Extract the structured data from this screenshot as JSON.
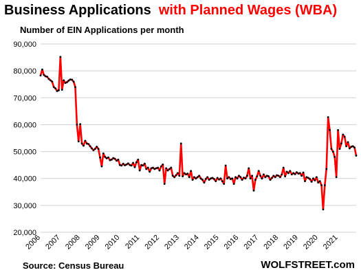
{
  "title": {
    "part1": "Business Applications",
    "part2": "with Planned Wages (WBA)"
  },
  "subtitle": "Number of EIN Applications per month",
  "source": "Source: Census Bureau",
  "brand": "WOLFSTREET.com",
  "colors": {
    "line": "#ff0000",
    "marker": "#000000",
    "grid": "#d0d0d0",
    "title_accent": "#ff0000"
  },
  "chart_data": {
    "type": "line",
    "title": "Business Applications with Planned Wages (WBA)",
    "ylabel": "Number of EIN Applications per month",
    "xlabel": "",
    "ylim": [
      20000,
      90000
    ],
    "yticks": [
      20000,
      30000,
      40000,
      50000,
      60000,
      70000,
      80000,
      90000
    ],
    "ytick_labels": [
      "20,000",
      "30,000",
      "40,000",
      "50,000",
      "60,000",
      "70,000",
      "80,000",
      "90,000"
    ],
    "xlim": [
      "2006-01",
      "2021-12"
    ],
    "xticks": [
      "2006",
      "2007",
      "2008",
      "2009",
      "2010",
      "2011",
      "2012",
      "2013",
      "2014",
      "2015",
      "2016",
      "2017",
      "2018",
      "2019",
      "2020",
      "2021"
    ],
    "grid": true,
    "legend": "none",
    "series": [
      {
        "marker": "dot",
        "points": [
          [
            "2006-01",
            78300
          ],
          [
            "2006-02",
            80500
          ],
          [
            "2006-03",
            78500
          ],
          [
            "2006-04",
            78000
          ],
          [
            "2006-05",
            77800
          ],
          [
            "2006-06",
            77000
          ],
          [
            "2006-07",
            76500
          ],
          [
            "2006-08",
            76000
          ],
          [
            "2006-09",
            74000
          ],
          [
            "2006-10",
            73500
          ],
          [
            "2006-11",
            72500
          ],
          [
            "2006-12",
            72800
          ],
          [
            "2007-01",
            85200
          ],
          [
            "2007-02",
            73000
          ],
          [
            "2007-03",
            76500
          ],
          [
            "2007-04",
            75500
          ],
          [
            "2007-05",
            75800
          ],
          [
            "2007-06",
            76400
          ],
          [
            "2007-07",
            76800
          ],
          [
            "2007-08",
            76700
          ],
          [
            "2007-09",
            76000
          ],
          [
            "2007-10",
            74000
          ],
          [
            "2007-11",
            60000
          ],
          [
            "2007-12",
            53800
          ],
          [
            "2008-01",
            60200
          ],
          [
            "2008-02",
            53000
          ],
          [
            "2008-03",
            52200
          ],
          [
            "2008-04",
            54000
          ],
          [
            "2008-05",
            53000
          ],
          [
            "2008-06",
            52800
          ],
          [
            "2008-07",
            52000
          ],
          [
            "2008-08",
            51200
          ],
          [
            "2008-09",
            50500
          ],
          [
            "2008-10",
            51000
          ],
          [
            "2008-11",
            51800
          ],
          [
            "2008-12",
            51000
          ],
          [
            "2009-01",
            47800
          ],
          [
            "2009-02",
            44500
          ],
          [
            "2009-03",
            49300
          ],
          [
            "2009-04",
            48000
          ],
          [
            "2009-05",
            47500
          ],
          [
            "2009-06",
            47800
          ],
          [
            "2009-07",
            46800
          ],
          [
            "2009-08",
            47000
          ],
          [
            "2009-09",
            47600
          ],
          [
            "2009-10",
            47300
          ],
          [
            "2009-11",
            46600
          ],
          [
            "2009-12",
            47000
          ],
          [
            "2010-01",
            45000
          ],
          [
            "2010-02",
            44800
          ],
          [
            "2010-03",
            45500
          ],
          [
            "2010-04",
            44900
          ],
          [
            "2010-05",
            45200
          ],
          [
            "2010-06",
            45600
          ],
          [
            "2010-07",
            45000
          ],
          [
            "2010-08",
            44800
          ],
          [
            "2010-09",
            45800
          ],
          [
            "2010-10",
            44200
          ],
          [
            "2010-11",
            46000
          ],
          [
            "2010-12",
            47000
          ],
          [
            "2011-01",
            43000
          ],
          [
            "2011-02",
            45000
          ],
          [
            "2011-03",
            44800
          ],
          [
            "2011-04",
            45500
          ],
          [
            "2011-05",
            43500
          ],
          [
            "2011-06",
            44000
          ],
          [
            "2011-07",
            42500
          ],
          [
            "2011-08",
            43800
          ],
          [
            "2011-09",
            44000
          ],
          [
            "2011-10",
            43500
          ],
          [
            "2011-11",
            43800
          ],
          [
            "2011-12",
            44000
          ],
          [
            "2012-01",
            43000
          ],
          [
            "2012-02",
            44500
          ],
          [
            "2012-03",
            45200
          ],
          [
            "2012-04",
            38000
          ],
          [
            "2012-05",
            43800
          ],
          [
            "2012-06",
            43000
          ],
          [
            "2012-07",
            43500
          ],
          [
            "2012-08",
            44000
          ],
          [
            "2012-09",
            41000
          ],
          [
            "2012-10",
            40500
          ],
          [
            "2012-11",
            41200
          ],
          [
            "2012-12",
            42000
          ],
          [
            "2013-01",
            41000
          ],
          [
            "2013-02",
            53000
          ],
          [
            "2013-03",
            40800
          ],
          [
            "2013-04",
            42000
          ],
          [
            "2013-05",
            41500
          ],
          [
            "2013-06",
            41800
          ],
          [
            "2013-07",
            40500
          ],
          [
            "2013-08",
            42800
          ],
          [
            "2013-09",
            39500
          ],
          [
            "2013-10",
            40500
          ],
          [
            "2013-11",
            40000
          ],
          [
            "2013-12",
            40500
          ],
          [
            "2014-01",
            41000
          ],
          [
            "2014-02",
            40000
          ],
          [
            "2014-03",
            39500
          ],
          [
            "2014-04",
            38500
          ],
          [
            "2014-05",
            39800
          ],
          [
            "2014-06",
            40500
          ],
          [
            "2014-07",
            39500
          ],
          [
            "2014-08",
            40000
          ],
          [
            "2014-09",
            40200
          ],
          [
            "2014-10",
            39800
          ],
          [
            "2014-11",
            39000
          ],
          [
            "2014-12",
            40200
          ],
          [
            "2015-01",
            39600
          ],
          [
            "2015-02",
            40000
          ],
          [
            "2015-03",
            39000
          ],
          [
            "2015-04",
            38000
          ],
          [
            "2015-05",
            44800
          ],
          [
            "2015-06",
            40000
          ],
          [
            "2015-07",
            40500
          ],
          [
            "2015-08",
            39800
          ],
          [
            "2015-09",
            40000
          ],
          [
            "2015-10",
            38000
          ],
          [
            "2015-11",
            40500
          ],
          [
            "2015-12",
            40000
          ],
          [
            "2016-01",
            41000
          ],
          [
            "2016-02",
            40500
          ],
          [
            "2016-03",
            39500
          ],
          [
            "2016-04",
            40300
          ],
          [
            "2016-05",
            40000
          ],
          [
            "2016-06",
            41000
          ],
          [
            "2016-07",
            43800
          ],
          [
            "2016-08",
            40000
          ],
          [
            "2016-09",
            41000
          ],
          [
            "2016-10",
            35500
          ],
          [
            "2016-11",
            39500
          ],
          [
            "2016-12",
            40800
          ],
          [
            "2017-01",
            42800
          ],
          [
            "2017-02",
            41000
          ],
          [
            "2017-03",
            40000
          ],
          [
            "2017-04",
            41500
          ],
          [
            "2017-05",
            40500
          ],
          [
            "2017-06",
            41000
          ],
          [
            "2017-07",
            40800
          ],
          [
            "2017-08",
            39500
          ],
          [
            "2017-09",
            40200
          ],
          [
            "2017-10",
            41000
          ],
          [
            "2017-11",
            40500
          ],
          [
            "2017-12",
            41200
          ],
          [
            "2018-01",
            41000
          ],
          [
            "2018-02",
            40500
          ],
          [
            "2018-03",
            41500
          ],
          [
            "2018-04",
            44000
          ],
          [
            "2018-05",
            40800
          ],
          [
            "2018-06",
            42500
          ],
          [
            "2018-07",
            42000
          ],
          [
            "2018-08",
            42800
          ],
          [
            "2018-09",
            41500
          ],
          [
            "2018-10",
            42000
          ],
          [
            "2018-11",
            41600
          ],
          [
            "2018-12",
            42300
          ],
          [
            "2019-01",
            41800
          ],
          [
            "2019-02",
            42000
          ],
          [
            "2019-03",
            41000
          ],
          [
            "2019-04",
            42200
          ],
          [
            "2019-05",
            39000
          ],
          [
            "2019-06",
            40500
          ],
          [
            "2019-07",
            40200
          ],
          [
            "2019-08",
            39800
          ],
          [
            "2019-09",
            38800
          ],
          [
            "2019-10",
            40000
          ],
          [
            "2019-11",
            39300
          ],
          [
            "2019-12",
            40500
          ],
          [
            "2020-01",
            38500
          ],
          [
            "2020-02",
            39000
          ],
          [
            "2020-03",
            37500
          ],
          [
            "2020-04",
            28500
          ],
          [
            "2020-05",
            37500
          ],
          [
            "2020-06",
            43500
          ],
          [
            "2020-07",
            62800
          ],
          [
            "2020-08",
            58000
          ],
          [
            "2020-09",
            51000
          ],
          [
            "2020-10",
            50000
          ],
          [
            "2020-11",
            48000
          ],
          [
            "2020-12",
            40500
          ],
          [
            "2021-01",
            58000
          ],
          [
            "2021-02",
            51000
          ],
          [
            "2021-03",
            53000
          ],
          [
            "2021-04",
            56300
          ],
          [
            "2021-05",
            55500
          ],
          [
            "2021-06",
            52000
          ],
          [
            "2021-07",
            53500
          ],
          [
            "2021-08",
            51200
          ],
          [
            "2021-09",
            51800
          ],
          [
            "2021-10",
            52000
          ],
          [
            "2021-11",
            51500
          ],
          [
            "2021-12",
            48500
          ]
        ]
      }
    ]
  }
}
